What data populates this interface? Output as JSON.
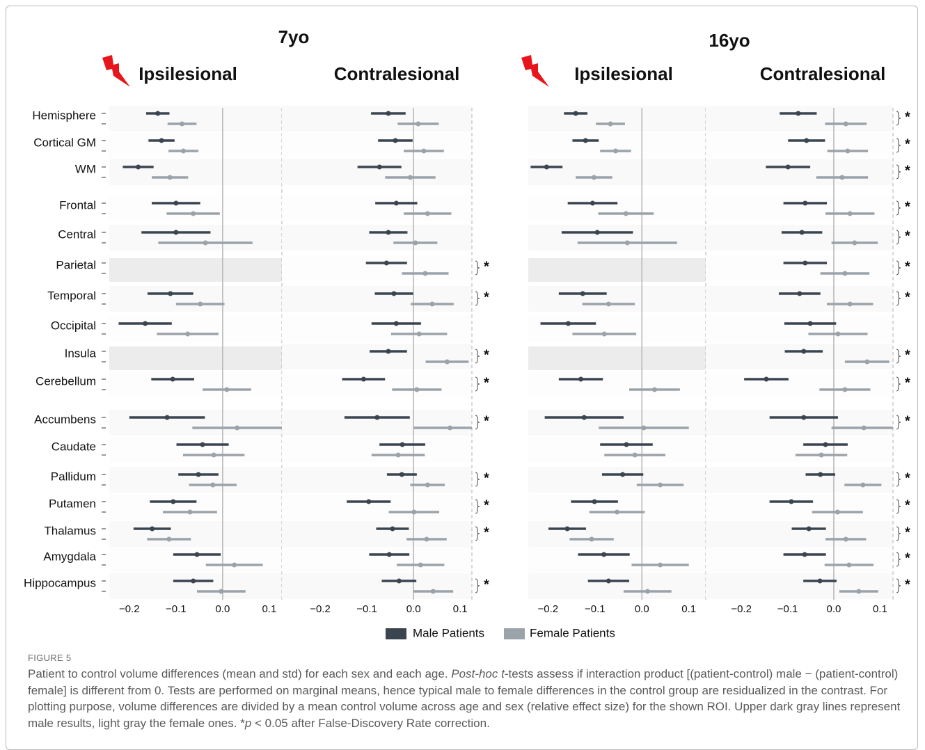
{
  "chart_data": {
    "type": "errorbar",
    "categories": [
      "Hemisphere",
      "Cortical GM",
      "WM",
      "Frontal",
      "Central",
      "Parietal",
      "Temporal",
      "Occipital",
      "Insula",
      "Cerebellum",
      "Accumbens",
      "Caudate",
      "Pallidum",
      "Putamen",
      "Thalamus",
      "Amygdala",
      "Hippocampus"
    ],
    "series": [
      {
        "name": "Male Patients",
        "color": "#3b4550"
      },
      {
        "name": "Female Patients",
        "color": "#9ba3aa"
      }
    ],
    "significance_label": "*",
    "significance_color": "#a0262a",
    "groups": [
      {
        "title": "7yo",
        "panels": [
          {
            "title": "Ipsilesional",
            "lesion_icon": true,
            "xlim": [
              -0.243,
              0.127
            ],
            "xticks": [
              {
                "value": -0.2,
                "label": "−0.2"
              },
              {
                "value": -0.1,
                "label": "−0.1"
              },
              {
                "value": 0,
                "label": "0.0"
              },
              0.1
            ],
            "series": [
              {
                "values": [
                  -0.139,
                  -0.131,
                  -0.181,
                  -0.1,
                  -0.1,
                  null,
                  -0.112,
                  -0.166,
                  null,
                  -0.107,
                  -0.119,
                  -0.043,
                  -0.052,
                  -0.106,
                  -0.151,
                  -0.055,
                  -0.063
                ],
                "errors": [
                  0.025,
                  0.028,
                  0.033,
                  0.052,
                  0.074,
                  null,
                  0.049,
                  0.057,
                  null,
                  0.046,
                  0.081,
                  0.056,
                  0.043,
                  0.05,
                  0.04,
                  0.051,
                  0.043
                ]
              },
              {
                "values": [
                  -0.087,
                  -0.084,
                  -0.113,
                  -0.063,
                  -0.037,
                  null,
                  -0.048,
                  -0.075,
                  null,
                  0.009,
                  0.031,
                  -0.019,
                  -0.021,
                  -0.07,
                  -0.115,
                  0.025,
                  -0.003
                ],
                "errors": [
                  0.031,
                  0.032,
                  0.039,
                  0.057,
                  0.101,
                  null,
                  0.052,
                  0.066,
                  null,
                  0.052,
                  0.096,
                  0.066,
                  0.051,
                  0.058,
                  0.047,
                  0.061,
                  0.052
                ]
              }
            ],
            "significant": [
              true,
              true,
              true,
              false,
              false,
              false,
              false,
              false,
              false,
              true,
              false,
              false,
              false,
              false,
              false,
              false,
              false
            ]
          },
          {
            "title": "Contralesional",
            "lesion_icon": false,
            "xlim": [
              -0.282,
              0.125
            ],
            "xticks": [
              {
                "value": -0.2,
                "label": "−0.2"
              },
              {
                "value": -0.1,
                "label": "−0.1"
              },
              {
                "value": 0,
                "label": "0.0"
              },
              0.1
            ],
            "series": [
              {
                "values": [
                  -0.054,
                  -0.039,
                  -0.073,
                  -0.037,
                  -0.054,
                  -0.058,
                  -0.042,
                  -0.037,
                  -0.054,
                  -0.107,
                  -0.078,
                  -0.024,
                  -0.025,
                  -0.096,
                  -0.045,
                  -0.052,
                  -0.031
                ],
                "errors": [
                  0.037,
                  0.037,
                  0.047,
                  0.045,
                  0.041,
                  0.044,
                  0.041,
                  0.053,
                  0.04,
                  0.046,
                  0.07,
                  0.049,
                  0.032,
                  0.047,
                  0.035,
                  0.043,
                  0.037
                ]
              },
              {
                "values": [
                  0.01,
                  0.022,
                  -0.007,
                  0.03,
                  0.004,
                  0.025,
                  0.04,
                  0.012,
                  0.072,
                  0.007,
                  0.078,
                  -0.033,
                  0.03,
                  0.001,
                  0.028,
                  0.015,
                  0.042
                ],
                "errors": [
                  0.044,
                  0.043,
                  0.054,
                  0.051,
                  0.047,
                  0.05,
                  0.046,
                  0.06,
                  0.046,
                  0.053,
                  0.078,
                  0.057,
                  0.037,
                  0.054,
                  0.043,
                  0.051,
                  0.043
                ]
              }
            ],
            "significant": [
              false,
              false,
              false,
              false,
              false,
              true,
              true,
              false,
              true,
              true,
              true,
              false,
              true,
              true,
              true,
              false,
              true
            ]
          }
        ]
      },
      {
        "title": "16yo",
        "panels": [
          {
            "title": "Ipsilesional",
            "lesion_icon": true,
            "xlim": [
              -0.242,
              0.136
            ],
            "xticks": [
              {
                "value": -0.2,
                "label": "−0.2"
              },
              {
                "value": -0.1,
                "label": "−0.1"
              },
              {
                "value": 0,
                "label": "0.0"
              },
              0.1
            ],
            "series": [
              {
                "values": [
                  -0.141,
                  -0.12,
                  -0.203,
                  -0.105,
                  -0.095,
                  null,
                  -0.126,
                  -0.157,
                  null,
                  -0.13,
                  -0.123,
                  -0.033,
                  -0.041,
                  -0.101,
                  -0.159,
                  -0.081,
                  -0.071
                ],
                "errors": [
                  0.025,
                  0.028,
                  0.034,
                  0.053,
                  0.076,
                  null,
                  0.051,
                  0.059,
                  null,
                  0.047,
                  0.084,
                  0.056,
                  0.044,
                  0.05,
                  0.04,
                  0.055,
                  0.044
                ]
              },
              {
                "values": [
                  -0.067,
                  -0.056,
                  -0.102,
                  -0.034,
                  -0.031,
                  null,
                  -0.071,
                  -0.08,
                  null,
                  0.027,
                  0.004,
                  -0.015,
                  0.039,
                  -0.053,
                  -0.107,
                  0.039,
                  0.012
                ],
                "errors": [
                  0.031,
                  0.033,
                  0.039,
                  0.059,
                  0.106,
                  null,
                  0.056,
                  0.068,
                  null,
                  0.054,
                  0.096,
                  0.065,
                  0.05,
                  0.059,
                  0.047,
                  0.061,
                  0.051
                ]
              }
            ],
            "significant": [
              true,
              true,
              true,
              false,
              false,
              false,
              false,
              false,
              false,
              true,
              false,
              false,
              true,
              false,
              false,
              true,
              true
            ]
          },
          {
            "title": "Contralesional",
            "lesion_icon": false,
            "xlim": [
              -0.277,
              0.128
            ],
            "xticks": [
              {
                "value": -0.2,
                "label": "−0.2"
              },
              {
                "value": -0.1,
                "label": "−0.1"
              },
              {
                "value": 0,
                "label": "0.0"
              },
              0.1
            ],
            "series": [
              {
                "values": [
                  -0.077,
                  -0.059,
                  -0.099,
                  -0.062,
                  -0.069,
                  -0.062,
                  -0.074,
                  -0.051,
                  -0.065,
                  -0.146,
                  -0.065,
                  -0.018,
                  -0.029,
                  -0.092,
                  -0.054,
                  -0.063,
                  -0.03
                ],
                "errors": [
                  0.04,
                  0.04,
                  0.048,
                  0.047,
                  0.044,
                  0.047,
                  0.045,
                  0.056,
                  0.041,
                  0.048,
                  0.074,
                  0.048,
                  0.032,
                  0.047,
                  0.037,
                  0.046,
                  0.036
                ]
              },
              {
                "values": [
                  0.026,
                  0.03,
                  0.018,
                  0.035,
                  0.045,
                  0.024,
                  0.035,
                  0.009,
                  0.072,
                  0.024,
                  0.065,
                  -0.027,
                  0.063,
                  0.008,
                  0.026,
                  0.033,
                  0.054
                ],
                "errors": [
                  0.045,
                  0.044,
                  0.056,
                  0.053,
                  0.05,
                  0.053,
                  0.05,
                  0.064,
                  0.048,
                  0.055,
                  0.07,
                  0.056,
                  0.04,
                  0.055,
                  0.044,
                  0.053,
                  0.042
                ]
              }
            ],
            "significant": [
              true,
              true,
              true,
              true,
              true,
              true,
              true,
              false,
              true,
              true,
              true,
              false,
              true,
              true,
              true,
              true,
              true
            ]
          }
        ]
      }
    ]
  },
  "caption": {
    "label": "FIGURE 5",
    "segments": [
      {
        "text": "Patient to control volume differences (mean and std) for each sex and each age. "
      },
      {
        "text": "Post-hoc t",
        "italic": true
      },
      {
        "text": "-tests assess if interaction product [(patient-control) male − (patient-control) female] is different from 0. Tests are performed on marginal means, hence typical male to female differences in the control group are residualized in the contrast. For plotting purpose, volume differences are divided by a mean control volume across age and sex (relative effect size) for the shown ROI. Upper dark gray lines represent male results, light gray the female ones. *"
      },
      {
        "text": "p",
        "italic": true
      },
      {
        "text": " < 0.05 after False-Discovery Rate correction."
      }
    ]
  }
}
